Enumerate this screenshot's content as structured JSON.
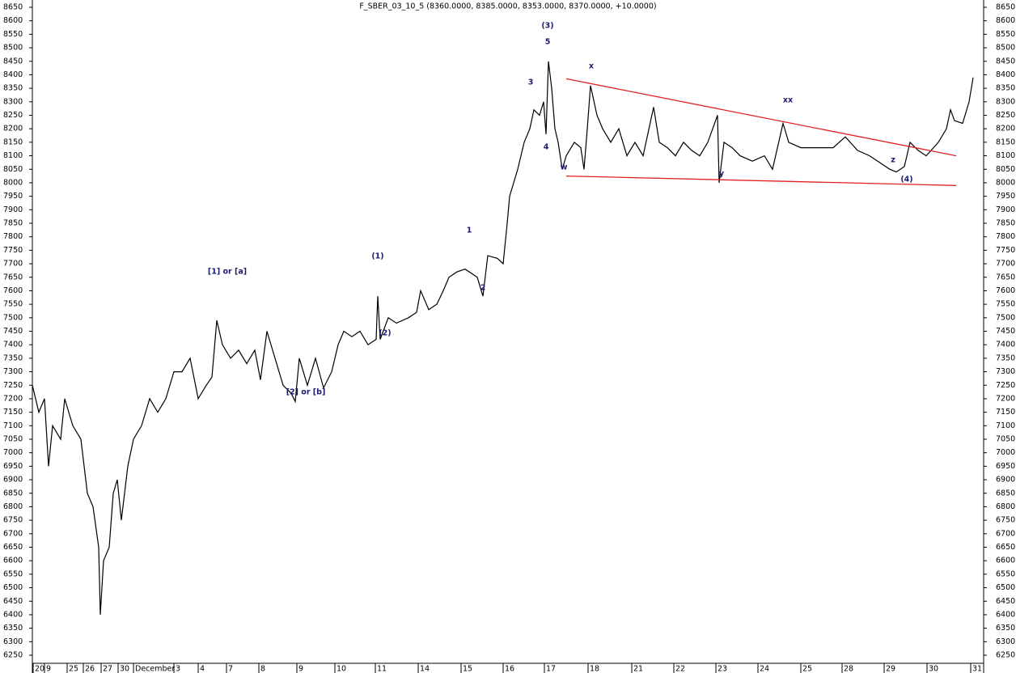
{
  "chart_data": {
    "type": "line",
    "title": "F_SBER_03_10_5 (8360.0000, 8385.0000, 8353.0000, 8370.0000, +10.0000)",
    "xlim": [
      0,
      1175
    ],
    "ylim": [
      6250,
      8650
    ],
    "yticks": [
      6250,
      6300,
      6350,
      6400,
      6450,
      6500,
      6550,
      6600,
      6650,
      6700,
      6750,
      6800,
      6850,
      6900,
      6950,
      7000,
      7050,
      7100,
      7150,
      7200,
      7250,
      7300,
      7350,
      7400,
      7450,
      7500,
      7550,
      7600,
      7650,
      7700,
      7750,
      7800,
      7850,
      7900,
      7950,
      8000,
      8050,
      8100,
      8150,
      8200,
      8250,
      8300,
      8350,
      8400,
      8450,
      8500,
      8550,
      8600,
      8650
    ],
    "xticks": [
      {
        "value": 1,
        "label": "20"
      },
      {
        "value": 15,
        "label": "9"
      },
      {
        "value": 43,
        "label": "25"
      },
      {
        "value": 63,
        "label": "26"
      },
      {
        "value": 85,
        "label": "27"
      },
      {
        "value": 106,
        "label": "30"
      },
      {
        "value": 125,
        "label": "December"
      },
      {
        "value": 175,
        "label": "3"
      },
      {
        "value": 205,
        "label": "4"
      },
      {
        "value": 240,
        "label": "7"
      },
      {
        "value": 280,
        "label": "8"
      },
      {
        "value": 327,
        "label": "9"
      },
      {
        "value": 374,
        "label": "10"
      },
      {
        "value": 424,
        "label": "11"
      },
      {
        "value": 477,
        "label": "14"
      },
      {
        "value": 530,
        "label": "15"
      },
      {
        "value": 582,
        "label": "16"
      },
      {
        "value": 633,
        "label": "17"
      },
      {
        "value": 687,
        "label": "18"
      },
      {
        "value": 741,
        "label": "21"
      },
      {
        "value": 793,
        "label": "22"
      },
      {
        "value": 845,
        "label": "23"
      },
      {
        "value": 897,
        "label": "24"
      },
      {
        "value": 950,
        "label": "25"
      },
      {
        "value": 1001,
        "label": "28"
      },
      {
        "value": 1053,
        "label": "29"
      },
      {
        "value": 1106,
        "label": "30"
      },
      {
        "value": 1160,
        "label": "31"
      }
    ],
    "series": [
      {
        "color": "#000000",
        "x": [
          0,
          8,
          15,
          20,
          25,
          35,
          40,
          50,
          60,
          68,
          75,
          82,
          84,
          88,
          95,
          100,
          105,
          110,
          118,
          125,
          135,
          145,
          155,
          165,
          175,
          185,
          195,
          205,
          215,
          222,
          228,
          235,
          245,
          255,
          265,
          275,
          282,
          290,
          300,
          310,
          320,
          325,
          330,
          340,
          350,
          360,
          370,
          378,
          385,
          395,
          405,
          415,
          425,
          427,
          430,
          440,
          450,
          465,
          475,
          480,
          490,
          500,
          508,
          515,
          525,
          535,
          550,
          557,
          563,
          575,
          582,
          587,
          590,
          600,
          608,
          615,
          620,
          627,
          632,
          635,
          638,
          642,
          646,
          650,
          655,
          660,
          670,
          678,
          682,
          686,
          690,
          698,
          705,
          715,
          725,
          735,
          745,
          755,
          768,
          775,
          785,
          795,
          805,
          815,
          825,
          835,
          847,
          849,
          855,
          865,
          875,
          890,
          905,
          915,
          928,
          935,
          950,
          970,
          990,
          1005,
          1020,
          1035,
          1045,
          1060,
          1068,
          1078,
          1085,
          1095,
          1105,
          1120,
          1130,
          1135,
          1140,
          1150,
          1158,
          1163
        ],
        "values": [
          7250,
          7150,
          7200,
          6950,
          7100,
          7050,
          7200,
          7100,
          7050,
          6850,
          6800,
          6650,
          6400,
          6600,
          6650,
          6850,
          6900,
          6750,
          6950,
          7050,
          7100,
          7200,
          7150,
          7200,
          7300,
          7300,
          7350,
          7200,
          7250,
          7280,
          7490,
          7400,
          7350,
          7380,
          7330,
          7380,
          7270,
          7450,
          7350,
          7250,
          7220,
          7190,
          7350,
          7250,
          7350,
          7240,
          7300,
          7400,
          7450,
          7430,
          7450,
          7400,
          7420,
          7580,
          7420,
          7500,
          7480,
          7500,
          7520,
          7600,
          7530,
          7550,
          7600,
          7650,
          7670,
          7680,
          7650,
          7580,
          7730,
          7720,
          7700,
          7850,
          7950,
          8050,
          8150,
          8200,
          8270,
          8250,
          8300,
          8180,
          8450,
          8350,
          8200,
          8150,
          8050,
          8100,
          8150,
          8130,
          8050,
          8200,
          8360,
          8250,
          8200,
          8150,
          8200,
          8100,
          8150,
          8100,
          8280,
          8150,
          8130,
          8100,
          8150,
          8120,
          8100,
          8150,
          8250,
          8000,
          8150,
          8130,
          8100,
          8080,
          8100,
          8050,
          8220,
          8150,
          8130,
          8130,
          8130,
          8170,
          8120,
          8100,
          8080,
          8050,
          8040,
          8060,
          8150,
          8120,
          8100,
          8150,
          8200,
          8270,
          8230,
          8220,
          8300,
          8390
        ]
      }
    ],
    "trendlines": [
      {
        "color": "#e02020",
        "x": [
          660,
          1142
        ],
        "values": [
          8385,
          8100
        ]
      },
      {
        "color": "#e02020",
        "x": [
          660,
          1142
        ],
        "values": [
          8025,
          7990
        ]
      }
    ],
    "annotations": [
      {
        "text": "[1] or [a]",
        "x": 241,
        "y": 7670
      },
      {
        "text": "[2] or [b]",
        "x": 338,
        "y": 7224
      },
      {
        "text": "(1)",
        "x": 427,
        "y": 7727
      },
      {
        "text": "(2)",
        "x": 436,
        "y": 7443
      },
      {
        "text": "1",
        "x": 540,
        "y": 7823
      },
      {
        "text": "2",
        "x": 557,
        "y": 7610
      },
      {
        "text": "3",
        "x": 616,
        "y": 8371
      },
      {
        "text": "4",
        "x": 635,
        "y": 8132
      },
      {
        "text": "5",
        "x": 637,
        "y": 8521
      },
      {
        "text": "(3)",
        "x": 637,
        "y": 8581
      },
      {
        "text": "w",
        "x": 657,
        "y": 8057
      },
      {
        "text": "x",
        "x": 691,
        "y": 8431
      },
      {
        "text": "y",
        "x": 852,
        "y": 8033
      },
      {
        "text": "xx",
        "x": 934,
        "y": 8305
      },
      {
        "text": "z",
        "x": 1064,
        "y": 8084
      },
      {
        "text": "(4)",
        "x": 1081,
        "y": 8012
      }
    ],
    "annotation_color": "#1a1a70"
  }
}
